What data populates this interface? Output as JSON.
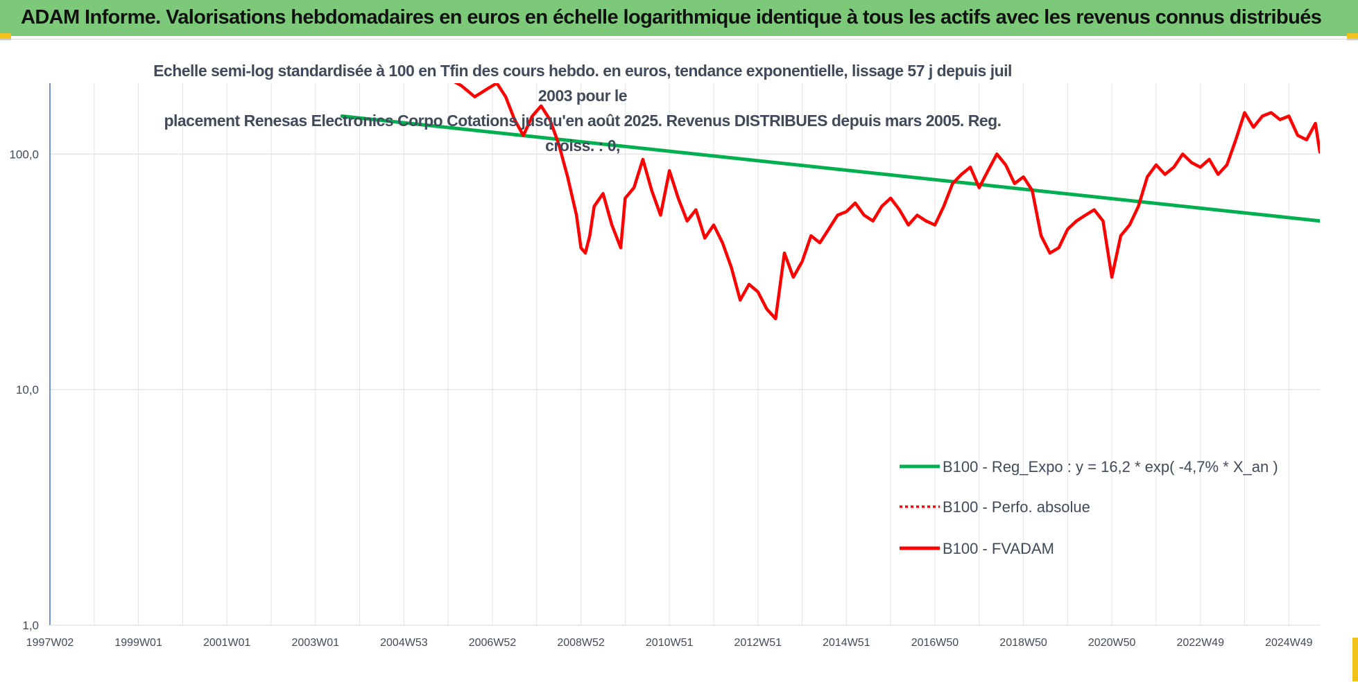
{
  "banner": {
    "title": "ADAM Informe. Valorisations hebdomadaires en euros en échelle logarithmique identique à tous les actifs avec les revenus connus distribués",
    "color": "#7dc97a"
  },
  "chart_data": {
    "type": "line",
    "subtitle_line1": "Echelle semi-log standardisée à 100 en Tfin des cours hebdo. en euros, tendance exponentielle, lissage 57 j depuis juil 2003 pour le",
    "subtitle_line2": "placement Renesas Electronics Corpo Cotations jusqu'en août 2025. Revenus DISTRIBUES depuis mars 2005. Reg. croiss. : 0,",
    "y_scale": "log",
    "ylim": [
      1,
      200
    ],
    "y_ticks": [
      "1,0",
      "10,0",
      "100,0"
    ],
    "y_tick_values": [
      1,
      10,
      100
    ],
    "x_ticks": [
      "1997W02",
      "1999W01",
      "2001W01",
      "2003W01",
      "2004W53",
      "2006W52",
      "2008W52",
      "2010W51",
      "2012W51",
      "2014W51",
      "2016W50",
      "2018W50",
      "2020W50",
      "2022W49",
      "2024W49"
    ],
    "x_tick_years": [
      1997.0,
      1999.0,
      2001.0,
      2003.0,
      2005.0,
      2007.0,
      2009.0,
      2011.0,
      2013.0,
      2015.0,
      2017.0,
      2019.0,
      2021.0,
      2023.0,
      2025.0
    ],
    "x_range_years": [
      1997.0,
      2025.7
    ],
    "grid": true,
    "legend_position": "bottom-right",
    "legend": [
      {
        "label": "B100 - Reg_Expo : y = 16,2 * exp( -4,7% *  X_an )",
        "color": "#00b050",
        "style": "solid"
      },
      {
        "label": "B100 - Perfo. absolue",
        "color": "#ff0000",
        "style": "dotted"
      },
      {
        "label": "B100 - FVADAM",
        "color": "#ff0000",
        "style": "solid"
      }
    ],
    "series": [
      {
        "name": "B100 - Reg_Expo : y = 16,2 * exp( -4,7% *  X_an )",
        "color": "#00b050",
        "x": [
          2003.6,
          2025.7
        ],
        "y": [
          145,
          52
        ]
      },
      {
        "name": "B100 - FVADAM",
        "color": "#ff0000",
        "x": [
          2006.0,
          2006.3,
          2006.6,
          2006.9,
          2007.1,
          2007.3,
          2007.5,
          2007.7,
          2007.9,
          2008.1,
          2008.3,
          2008.5,
          2008.7,
          2008.9,
          2009.0,
          2009.1,
          2009.2,
          2009.3,
          2009.5,
          2009.7,
          2009.9,
          2010.0,
          2010.2,
          2010.4,
          2010.6,
          2010.8,
          2011.0,
          2011.2,
          2011.4,
          2011.6,
          2011.8,
          2012.0,
          2012.2,
          2012.4,
          2012.6,
          2012.8,
          2013.0,
          2013.2,
          2013.4,
          2013.6,
          2013.8,
          2014.0,
          2014.2,
          2014.4,
          2014.6,
          2014.8,
          2015.0,
          2015.2,
          2015.4,
          2015.6,
          2015.8,
          2016.0,
          2016.2,
          2016.4,
          2016.6,
          2016.8,
          2017.0,
          2017.2,
          2017.4,
          2017.6,
          2017.8,
          2018.0,
          2018.2,
          2018.4,
          2018.6,
          2018.8,
          2019.0,
          2019.2,
          2019.4,
          2019.6,
          2019.8,
          2020.0,
          2020.2,
          2020.4,
          2020.6,
          2020.8,
          2021.0,
          2021.2,
          2021.4,
          2021.6,
          2021.8,
          2022.0,
          2022.2,
          2022.4,
          2022.6,
          2022.8,
          2023.0,
          2023.2,
          2023.4,
          2023.6,
          2023.8,
          2024.0,
          2024.2,
          2024.4,
          2024.6,
          2024.8,
          2025.0,
          2025.2,
          2025.4,
          2025.6,
          2025.7
        ],
        "y": [
          210,
          195,
          175,
          190,
          200,
          175,
          140,
          120,
          145,
          160,
          140,
          110,
          80,
          55,
          40,
          38,
          45,
          60,
          68,
          50,
          40,
          65,
          72,
          95,
          70,
          55,
          85,
          65,
          52,
          58,
          44,
          50,
          42,
          33,
          24,
          28,
          26,
          22,
          20,
          38,
          30,
          35,
          45,
          42,
          48,
          55,
          57,
          62,
          55,
          52,
          60,
          65,
          58,
          50,
          55,
          52,
          50,
          60,
          75,
          82,
          88,
          72,
          85,
          100,
          90,
          75,
          80,
          70,
          45,
          38,
          40,
          48,
          52,
          55,
          58,
          52,
          30,
          45,
          50,
          60,
          80,
          90,
          82,
          88,
          100,
          92,
          88,
          95,
          82,
          90,
          115,
          150,
          130,
          145,
          150,
          140,
          145,
          120,
          115,
          135,
          102
        ]
      }
    ]
  }
}
